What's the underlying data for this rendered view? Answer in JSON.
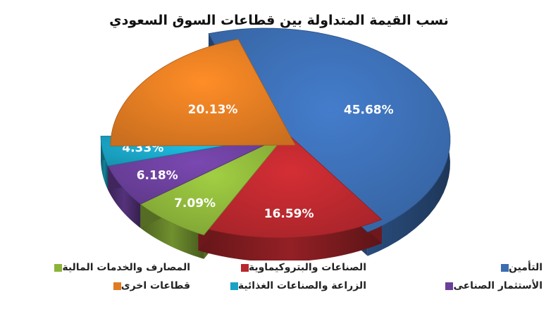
{
  "chart_data": {
    "type": "pie",
    "title": "نسب القيمة المتداولة بين قطاعات السوق السعودي",
    "slices": [
      {
        "name": "التأمين",
        "value": 45.68,
        "label": "45.68%",
        "color": "#3b6db1"
      },
      {
        "name": "الصناعات والبتروكيماوية",
        "value": 16.59,
        "label": "16.59%",
        "color": "#b8282e"
      },
      {
        "name": "المصارف والخدمات المالية",
        "value": 7.09,
        "label": "7.09%",
        "color": "#8cb43a"
      },
      {
        "name": "الأستثمار الصناعى",
        "value": 6.18,
        "label": "6.18%",
        "color": "#6a3f9a"
      },
      {
        "name": "الزراعة والصناعات الغذائية",
        "value": 4.33,
        "label": "4.33%",
        "color": "#1aa3c4"
      },
      {
        "name": "قطاعات اخرى",
        "value": 20.13,
        "label": "20.13%",
        "color": "#e07b22"
      }
    ],
    "legend_position": "bottom",
    "style": "3d-exploded"
  }
}
